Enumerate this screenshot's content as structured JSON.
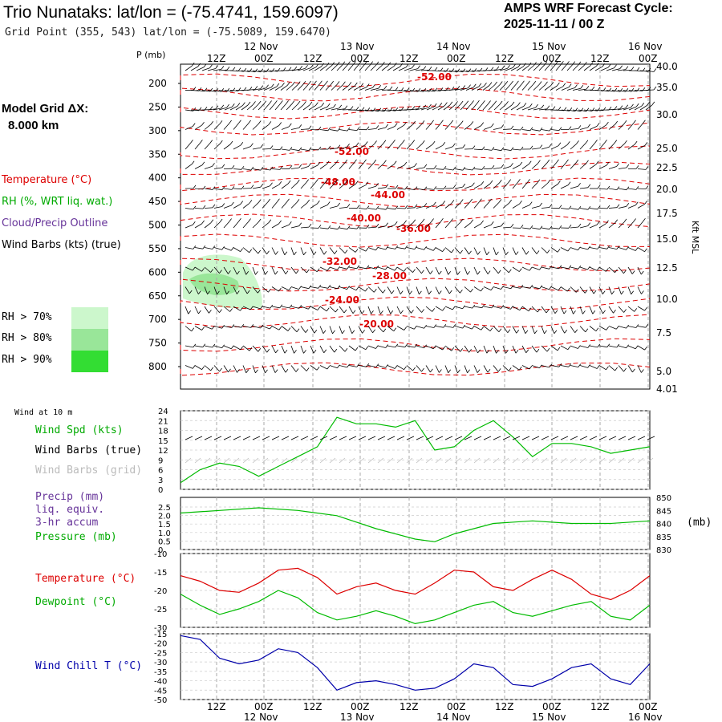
{
  "header": {
    "title": "Trio Nunataks:  lat/lon = (-75.4741, 159.6097)",
    "grid_point": "Grid Point (355, 543) lat/lon = (-75.5089, 159.6470)",
    "cycle_line1": "AMPS WRF Forecast Cycle:",
    "cycle_line2": "2025-11-11 / 00  Z"
  },
  "left_labels": {
    "model_grid": "Model Grid ΔX:",
    "model_grid_value": "8.000 km",
    "temperature": "Temperature (°C)",
    "rh": "RH (%, WRT liq. wat.)",
    "cloud": "Cloud/Precip Outline",
    "wind_barbs": "Wind Barbs (kts) (true)",
    "rh_legend": [
      {
        "label": "RH > 70%",
        "color": "#ccf7cc"
      },
      {
        "label": "RH > 80%",
        "color": "#99e699"
      },
      {
        "label": "RH > 90%",
        "color": "#33dd33"
      }
    ]
  },
  "panel_labels": {
    "wind10": "Wind at 10 m",
    "wind_spd": "Wind Spd (kts)",
    "barbs_true": "Wind Barbs (true)",
    "barbs_grid": "Wind Barbs (grid)",
    "precip": "Precip (mm)",
    "liq": "liq. equiv.",
    "accum": "3-hr accum",
    "pressure": "Pressure (mb)",
    "mb_unit": "(mb)",
    "temperature": "Temperature (°C)",
    "dewpoint": "Dewpoint (°C)",
    "windchill": "Wind Chill T (°C)",
    "kft": "Kft MSL",
    "p_axis": "P (mb)"
  },
  "colors": {
    "temperature": "#dd0000",
    "dewpoint": "#00bb00",
    "windchill": "#0000aa",
    "rh_label": "#00aa00",
    "cloud_label": "#663399",
    "grid_barbs": "#bbbbbb"
  },
  "chart_data": [
    {
      "type": "line",
      "title": "Time-height cross section",
      "time_ticks_top": [
        "12Z",
        "00Z",
        "12Z",
        "00Z",
        "12Z",
        "00Z",
        "12Z",
        "00Z",
        "12Z",
        "00Z"
      ],
      "date_ticks_top": [
        "12 Nov",
        "13 Nov",
        "14 Nov",
        "15 Nov",
        "16 Nov"
      ],
      "pressure_ticks": [
        "200",
        "250",
        "300",
        "350",
        "400",
        "450",
        "500",
        "550",
        "600",
        "650",
        "700",
        "750",
        "800"
      ],
      "height_ticks": [
        "40.0",
        "35.0",
        "30.0",
        "25.0",
        "22.5",
        "20.0",
        "17.5",
        "15.0",
        "12.5",
        "10.0",
        "7.5",
        "5.0",
        "4.01"
      ],
      "isotherm_labels": [
        "-52.00",
        "-52.00",
        "-48.00",
        "-44.00",
        "-40.00",
        "-36.00",
        "-32.00",
        "-28.00",
        "-24.00",
        "-20.00"
      ],
      "ylim": [
        850,
        180
      ]
    },
    {
      "type": "line",
      "title": "Wind at 10 m",
      "ylabel": "Wind Spd (kts)",
      "yticks": [
        "24",
        "21",
        "18",
        "15",
        "12",
        "9",
        "6",
        "3",
        "0"
      ],
      "ylim": [
        0,
        24
      ],
      "hours": [
        0,
        6,
        12,
        18,
        24,
        30,
        36,
        42,
        48,
        54,
        60,
        66,
        72,
        78,
        84,
        90,
        96,
        102,
        108,
        114,
        120,
        126,
        132,
        138,
        144
      ],
      "values": [
        2,
        6,
        8,
        7,
        4,
        7,
        10,
        13,
        22,
        20,
        20,
        19,
        21,
        12,
        13,
        18,
        21,
        16,
        10,
        14,
        14,
        13,
        11,
        12,
        13
      ]
    },
    {
      "type": "line",
      "title": "Precip and Pressure",
      "precip_ticks": [
        "2.5",
        "2.0",
        "1.5",
        "1.0",
        "0.5",
        "0"
      ],
      "pressure_ticks": [
        "850",
        "845",
        "840",
        "835",
        "830"
      ],
      "ylim": [
        830,
        850
      ],
      "hours": [
        0,
        12,
        24,
        36,
        48,
        60,
        72,
        78,
        84,
        96,
        108,
        120,
        132,
        144
      ],
      "values": [
        844,
        845,
        846,
        845,
        843,
        838,
        834,
        833,
        836,
        840,
        841,
        840,
        840,
        841
      ]
    },
    {
      "type": "line",
      "title": "Temperature and Dewpoint",
      "yticks": [
        "-10",
        "-15",
        "-20",
        "-25",
        "-30"
      ],
      "ylim": [
        -30,
        -10
      ],
      "hours": [
        0,
        6,
        12,
        18,
        24,
        30,
        36,
        42,
        48,
        54,
        60,
        66,
        72,
        78,
        84,
        90,
        96,
        102,
        108,
        114,
        120,
        126,
        132,
        138,
        144
      ],
      "series": [
        {
          "name": "Temperature (°C)",
          "values": [
            -16,
            -17.5,
            -20,
            -20.5,
            -18,
            -14.5,
            -14,
            -16.5,
            -21,
            -19,
            -18,
            -20,
            -21,
            -18,
            -14.5,
            -15,
            -19,
            -20,
            -17,
            -14.5,
            -17,
            -21,
            -22.5,
            -20,
            -16
          ]
        },
        {
          "name": "Dewpoint (°C)",
          "values": [
            -21,
            -24,
            -26.5,
            -25,
            -23,
            -20,
            -22,
            -26,
            -28,
            -27,
            -25.5,
            -27,
            -29,
            -28,
            -26,
            -24,
            -23,
            -26,
            -27,
            -25.5,
            -24,
            -23,
            -27,
            -28,
            -24
          ]
        }
      ]
    },
    {
      "type": "line",
      "title": "Wind Chill",
      "yticks": [
        "-15",
        "-20",
        "-25",
        "-30",
        "-35",
        "-40",
        "-45",
        "-50"
      ],
      "ylim": [
        -50,
        -15
      ],
      "hours": [
        0,
        6,
        12,
        18,
        24,
        30,
        36,
        42,
        48,
        54,
        60,
        66,
        72,
        78,
        84,
        90,
        96,
        102,
        108,
        114,
        120,
        126,
        132,
        138,
        144
      ],
      "values": [
        -16,
        -18,
        -28,
        -31,
        -29,
        -23,
        -25,
        -33,
        -45,
        -41,
        -40,
        -42,
        -45,
        -44,
        -39,
        -31,
        -33,
        -42,
        -43,
        -39,
        -33,
        -31,
        -39,
        -42,
        -31
      ]
    }
  ]
}
